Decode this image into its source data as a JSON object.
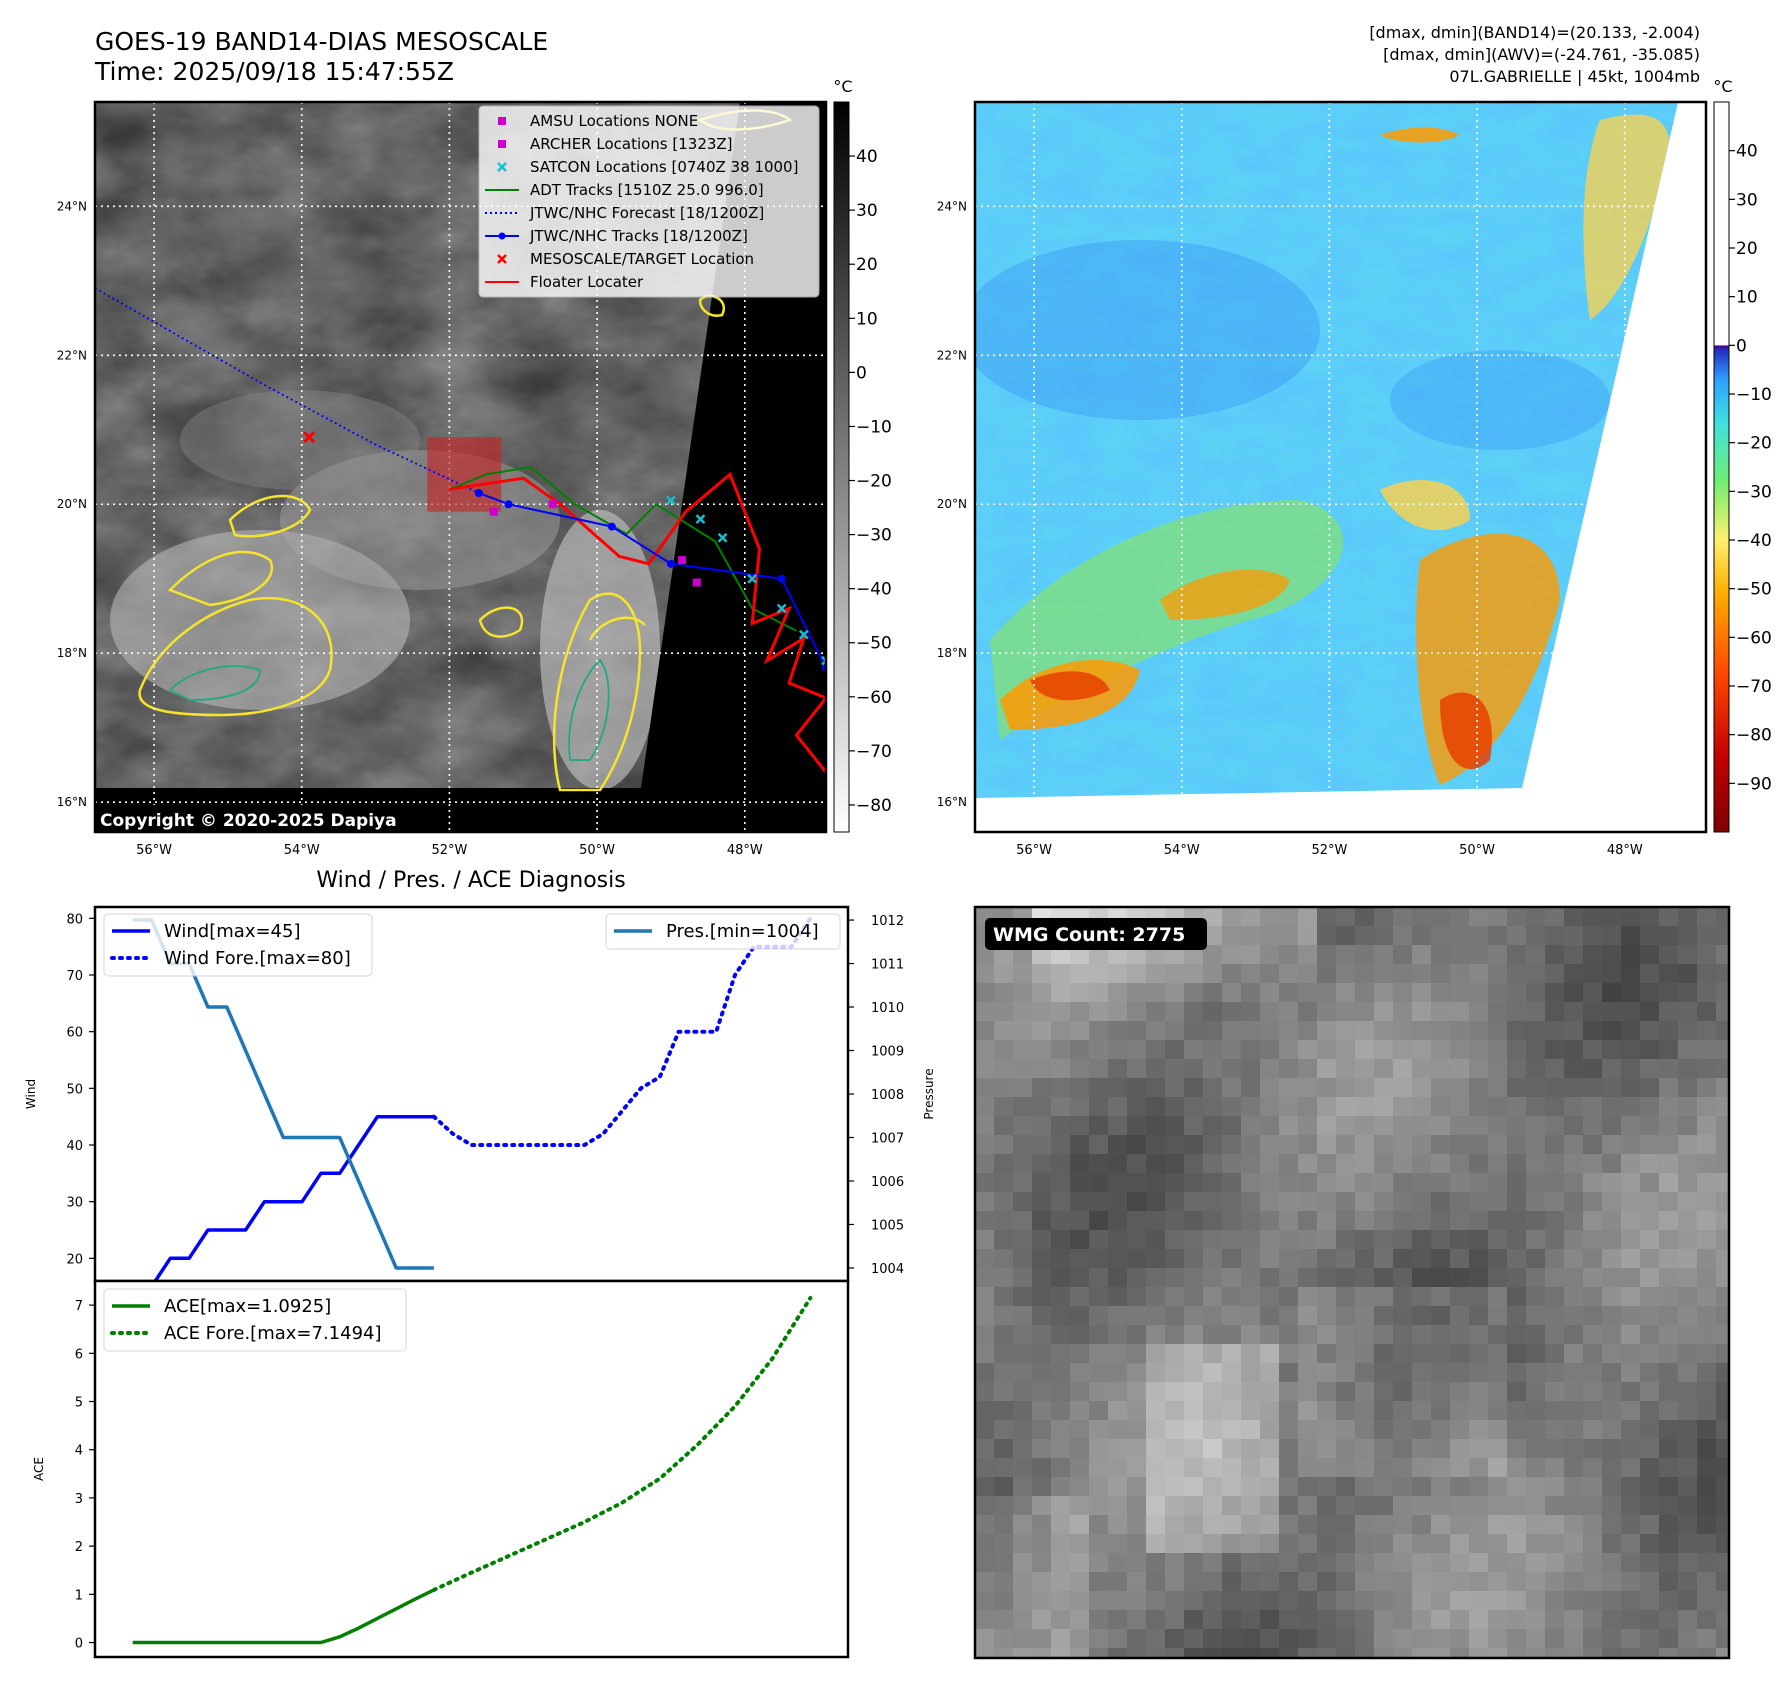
{
  "header": {
    "title_line1": "GOES-19 BAND14-DIAS MESOSCALE",
    "title_line2": "Time: 2025/09/18 15:47:55Z",
    "stats_line1": "[dmax, dmin](BAND14)=(20.133, -2.004)",
    "stats_line2": "[dmax, dmin](AWV)=(-24.761, -35.085)",
    "stats_line3": "07L.GABRIELLE | 45kt, 1004mb"
  },
  "copyright": "Copyright © 2020-2025 Dapiya",
  "wmg_label": "WMG Count: 2775",
  "colors": {
    "wind": "#0000ff",
    "pressure": "#1f77b4",
    "ace": "#008000",
    "adt": "#008000",
    "floater": "#ff0000",
    "satcon": "#17becf",
    "amsu": "#cc00cc"
  },
  "chart_data": [
    {
      "type": "map",
      "name": "band14-ir",
      "xlim": [
        -56.8,
        -46.9
      ],
      "ylim": [
        15.6,
        25.4
      ],
      "x_ticks": [
        "56°W",
        "54°W",
        "52°W",
        "50°W",
        "48°W"
      ],
      "x_tick_values": [
        -56,
        -54,
        -52,
        -50,
        -48
      ],
      "y_ticks": [
        "24°N",
        "22°N",
        "20°N",
        "18°N",
        "16°N"
      ],
      "y_tick_values": [
        24,
        22,
        20,
        18,
        16
      ],
      "colorbar": {
        "unit": "°C",
        "ticks": [
          "40",
          "30",
          "20",
          "10",
          "0",
          "−10",
          "−20",
          "−30",
          "−40",
          "−50",
          "−60",
          "−70",
          "−80"
        ],
        "tick_values": [
          40,
          30,
          20,
          10,
          0,
          -10,
          -20,
          -30,
          -40,
          -50,
          -60,
          -70,
          -80
        ],
        "range": [
          -85,
          50
        ]
      },
      "legend": [
        {
          "label": "AMSU Locations NONE",
          "marker": "square",
          "color": "#cc00cc"
        },
        {
          "label": "ARCHER Locations [1323Z]",
          "marker": "square",
          "color": "#cc00cc"
        },
        {
          "label": "SATCON Locations [0740Z 38 1000]",
          "marker": "x",
          "color": "#17becf"
        },
        {
          "label": "ADT Tracks [1510Z 25.0 996.0]",
          "marker": "line",
          "color": "#008000"
        },
        {
          "label": "JTWC/NHC Forecast [18/1200Z]",
          "marker": "dotted",
          "color": "#0000ff"
        },
        {
          "label": "JTWC/NHC Tracks [18/1200Z]",
          "marker": "line-dot",
          "color": "#0000ff"
        },
        {
          "label": "MESOSCALE/TARGET Location",
          "marker": "x",
          "color": "#ff0000"
        },
        {
          "label": "Floater Locater",
          "marker": "line",
          "color": "#ff0000"
        }
      ],
      "forecast_track": [
        [
          -56.8,
          22.9
        ],
        [
          -54.5,
          21.6
        ],
        [
          -53.0,
          20.8
        ],
        [
          -51.6,
          20.15
        ]
      ],
      "nhc_track": [
        [
          -51.6,
          20.15
        ],
        [
          -51.2,
          20.0
        ],
        [
          -49.8,
          19.7
        ],
        [
          -49.0,
          19.2
        ],
        [
          -47.5,
          19.0
        ],
        [
          -46.9,
          17.8
        ]
      ],
      "adt_track": [
        [
          -52.0,
          20.2
        ],
        [
          -51.5,
          20.4
        ],
        [
          -50.9,
          20.5
        ],
        [
          -50.3,
          20.0
        ],
        [
          -49.6,
          19.6
        ],
        [
          -49.2,
          20.0
        ],
        [
          -48.4,
          19.5
        ],
        [
          -47.9,
          18.6
        ],
        [
          -47.3,
          18.3
        ]
      ],
      "floater_track": [
        [
          -52.0,
          20.2
        ],
        [
          -51.0,
          20.35
        ],
        [
          -50.5,
          20.0
        ],
        [
          -49.7,
          19.3
        ],
        [
          -49.3,
          19.2
        ],
        [
          -48.8,
          19.9
        ],
        [
          -48.2,
          20.4
        ],
        [
          -47.8,
          19.4
        ],
        [
          -47.9,
          18.4
        ],
        [
          -47.4,
          18.6
        ],
        [
          -47.7,
          17.9
        ],
        [
          -47.2,
          18.2
        ],
        [
          -47.4,
          17.6
        ],
        [
          -46.9,
          17.4
        ],
        [
          -47.3,
          16.9
        ],
        [
          -46.9,
          16.4
        ]
      ],
      "satcon_points": [
        [
          -49.0,
          20.05
        ],
        [
          -48.6,
          19.8
        ],
        [
          -48.3,
          19.55
        ],
        [
          -47.9,
          19.0
        ],
        [
          -47.5,
          18.6
        ],
        [
          -47.2,
          18.25
        ],
        [
          -46.9,
          17.9
        ]
      ],
      "archer_points": [
        [
          -51.4,
          19.9
        ],
        [
          -50.6,
          20.0
        ],
        [
          -48.85,
          19.25
        ],
        [
          -48.65,
          18.95
        ]
      ],
      "target_location": [
        -53.9,
        20.9
      ]
    },
    {
      "type": "map",
      "name": "awv",
      "xlim": [
        -56.8,
        -46.9
      ],
      "ylim": [
        15.6,
        25.4
      ],
      "x_ticks": [
        "56°W",
        "54°W",
        "52°W",
        "50°W",
        "48°W"
      ],
      "x_tick_values": [
        -56,
        -54,
        -52,
        -50,
        -48
      ],
      "y_ticks": [
        "24°N",
        "22°N",
        "20°N",
        "18°N",
        "16°N"
      ],
      "y_tick_values": [
        24,
        22,
        20,
        18,
        16
      ],
      "colorbar": {
        "unit": "°C",
        "ticks": [
          "40",
          "30",
          "20",
          "10",
          "0",
          "−10",
          "−20",
          "−30",
          "−40",
          "−50",
          "−60",
          "−70",
          "−80",
          "−90"
        ],
        "tick_values": [
          40,
          30,
          20,
          10,
          0,
          -10,
          -20,
          -30,
          -40,
          -50,
          -60,
          -70,
          -80,
          -90
        ],
        "range": [
          -100,
          50
        ]
      }
    },
    {
      "type": "line",
      "name": "wind-pressure",
      "title": "Wind / Pres. / ACE Diagnosis",
      "ylabel": "Wind",
      "y2label": "Pressure",
      "xlim": [
        -1,
        19
      ],
      "ylim": [
        16,
        82
      ],
      "y_ticks": [
        20,
        30,
        40,
        50,
        60,
        70,
        80
      ],
      "y2lim": [
        1003.7,
        1012.3
      ],
      "y2_ticks": [
        1004,
        1005,
        1006,
        1007,
        1008,
        1009,
        1010,
        1011,
        1012
      ],
      "series": [
        {
          "name": "Wind[max=45]",
          "style": "solid",
          "axis": "left",
          "color": "#0000ff",
          "x": [
            0,
            0.5,
            1,
            1.5,
            2,
            2.5,
            3,
            3.5,
            4,
            4.5,
            5,
            5.5,
            6,
            6.5,
            7,
            7.5,
            8
          ],
          "values": [
            15,
            15,
            20,
            20,
            25,
            25,
            25,
            30,
            30,
            30,
            35,
            35,
            40,
            45,
            45,
            45,
            45
          ]
        },
        {
          "name": "Wind Fore.[max=80]",
          "style": "dotted",
          "axis": "left",
          "color": "#0000ff",
          "x": [
            8,
            8.5,
            9,
            9.5,
            10,
            10.5,
            11,
            11.5,
            12,
            12.5,
            13,
            13.5,
            14,
            14.5,
            15,
            15.5,
            16,
            16.5,
            17,
            17.5,
            18
          ],
          "values": [
            45,
            42,
            40,
            40,
            40,
            40,
            40,
            40,
            40,
            42,
            46,
            50,
            52,
            60,
            60,
            60,
            70,
            75,
            75,
            75,
            80
          ]
        },
        {
          "name": "Pres.[min=1004]",
          "style": "solid",
          "axis": "right",
          "color": "#1f77b4",
          "x": [
            0,
            0.5,
            1,
            1.5,
            2,
            2.5,
            3,
            3.5,
            4,
            4.5,
            5,
            5.5,
            6,
            6.5,
            7,
            7.5,
            8
          ],
          "values": [
            1012,
            1012,
            1011,
            1011,
            1010,
            1010,
            1009,
            1008,
            1007,
            1007,
            1007,
            1007,
            1006,
            1005,
            1004,
            1004,
            1004
          ]
        }
      ]
    },
    {
      "type": "line",
      "name": "ace",
      "ylabel": "ACE",
      "xlim": [
        -1,
        19
      ],
      "ylim": [
        -0.3,
        7.5
      ],
      "y_ticks": [
        0,
        1,
        2,
        3,
        4,
        5,
        6,
        7
      ],
      "series": [
        {
          "name": "ACE[max=1.0925]",
          "style": "solid",
          "color": "#008000",
          "x": [
            0,
            1,
            2,
            3,
            4,
            5,
            5.5,
            6,
            6.5,
            7,
            7.5,
            8
          ],
          "values": [
            0,
            0,
            0,
            0,
            0,
            0,
            0.12,
            0.3,
            0.5,
            0.7,
            0.9,
            1.0925
          ]
        },
        {
          "name": "ACE Fore.[max=7.1494]",
          "style": "dotted",
          "color": "#008000",
          "x": [
            8,
            9,
            10,
            11,
            12,
            13,
            14,
            15,
            16,
            17,
            18
          ],
          "values": [
            1.0925,
            1.45,
            1.8,
            2.15,
            2.5,
            2.9,
            3.4,
            4.1,
            4.9,
            5.9,
            7.1494
          ]
        }
      ]
    }
  ]
}
